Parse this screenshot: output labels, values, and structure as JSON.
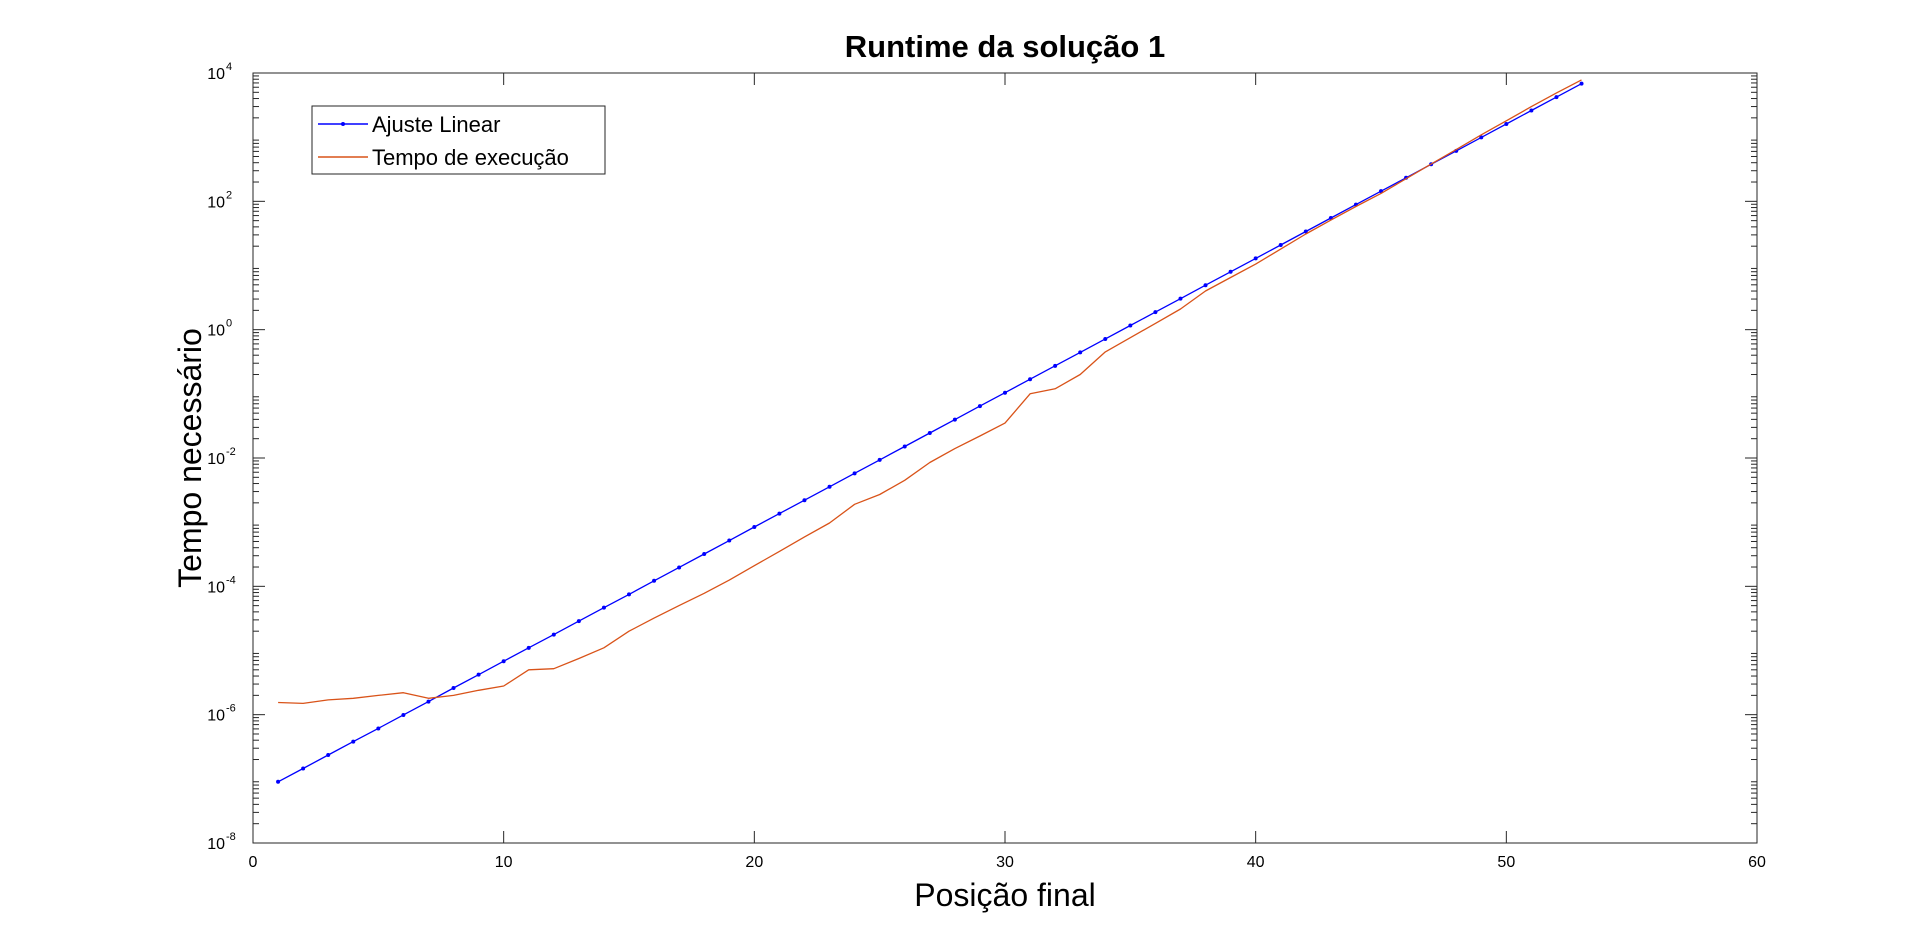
{
  "chart_data": {
    "type": "line",
    "title": "Runtime da solução 1",
    "xlabel": "Posição final",
    "ylabel": "Tempo necessário",
    "xlim": [
      0,
      60
    ],
    "ylim": [
      1e-08,
      10000
    ],
    "yscale": "log",
    "x_ticks": [
      0,
      10,
      20,
      30,
      40,
      50,
      60
    ],
    "x_tick_labels": [
      "0",
      "10",
      "20",
      "30",
      "40",
      "50",
      "60"
    ],
    "y_ticks": [
      1e-08,
      1e-06,
      0.0001,
      0.01,
      1,
      100,
      10000
    ],
    "y_tick_labels": [
      {
        "base": "10",
        "exp": "-8"
      },
      {
        "base": "10",
        "exp": "-6"
      },
      {
        "base": "10",
        "exp": "-4"
      },
      {
        "base": "10",
        "exp": "-2"
      },
      {
        "base": "10",
        "exp": "0"
      },
      {
        "base": "10",
        "exp": "2"
      },
      {
        "base": "10",
        "exp": "4"
      }
    ],
    "grid": false,
    "legend_position": "top-left",
    "series": [
      {
        "name": "Ajuste Linear",
        "color": "#0000ff",
        "marker": "dot",
        "x": [
          1,
          2,
          3,
          4,
          5,
          6,
          7,
          8,
          9,
          10,
          11,
          12,
          13,
          14,
          15,
          16,
          17,
          18,
          19,
          20,
          21,
          22,
          23,
          24,
          25,
          26,
          27,
          28,
          29,
          30,
          31,
          32,
          33,
          34,
          35,
          36,
          37,
          38,
          39,
          40,
          41,
          42,
          43,
          44,
          45,
          46,
          47,
          48,
          49,
          50,
          51,
          52,
          53
        ],
        "y": [
          9e-08,
          1.45e-07,
          2.35e-07,
          3.8e-07,
          6.1e-07,
          9.9e-07,
          1.6e-06,
          2.6e-06,
          4.2e-06,
          6.8e-06,
          1.1e-05,
          1.77e-05,
          2.87e-05,
          4.65e-05,
          7.5e-05,
          0.000122,
          0.000197,
          0.000319,
          0.000517,
          0.00084,
          0.00136,
          0.0022,
          0.00356,
          0.00577,
          0.00935,
          0.0151,
          0.0245,
          0.0397,
          0.0643,
          0.104,
          0.169,
          0.273,
          0.443,
          0.717,
          1.16,
          1.88,
          3.04,
          4.93,
          7.98,
          12.9,
          20.9,
          33.9,
          54.9,
          88.9,
          144,
          233,
          378,
          612,
          991,
          1605,
          2600,
          4210,
          6820
        ]
      },
      {
        "name": "Tempo de execução",
        "color": "#d95319",
        "marker": "none",
        "x": [
          1,
          2,
          3,
          4,
          5,
          6,
          7,
          8,
          9,
          10,
          11,
          12,
          13,
          14,
          15,
          16,
          17,
          18,
          19,
          20,
          21,
          22,
          23,
          24,
          25,
          26,
          27,
          28,
          29,
          30,
          31,
          32,
          33,
          34,
          35,
          36,
          37,
          38,
          39,
          40,
          41,
          42,
          43,
          44,
          45,
          46,
          47,
          48,
          49,
          50,
          51,
          52,
          53
        ],
        "y": [
          1.55e-06,
          1.5e-06,
          1.7e-06,
          1.8e-06,
          2e-06,
          2.2e-06,
          1.8e-06,
          2e-06,
          2.4e-06,
          2.8e-06,
          5e-06,
          5.2e-06,
          7.5e-06,
          1.1e-05,
          2e-05,
          3.2e-05,
          5e-05,
          7.8e-05,
          0.000125,
          0.00021,
          0.00035,
          0.00059,
          0.00097,
          0.0019,
          0.0027,
          0.0045,
          0.0085,
          0.014,
          0.022,
          0.035,
          0.1,
          0.12,
          0.2,
          0.45,
          0.75,
          1.25,
          2.1,
          4,
          6.5,
          10.5,
          18,
          31,
          51,
          83,
          133,
          225,
          380,
          640,
          1090,
          1800,
          3000,
          4900,
          7800
        ]
      }
    ]
  }
}
